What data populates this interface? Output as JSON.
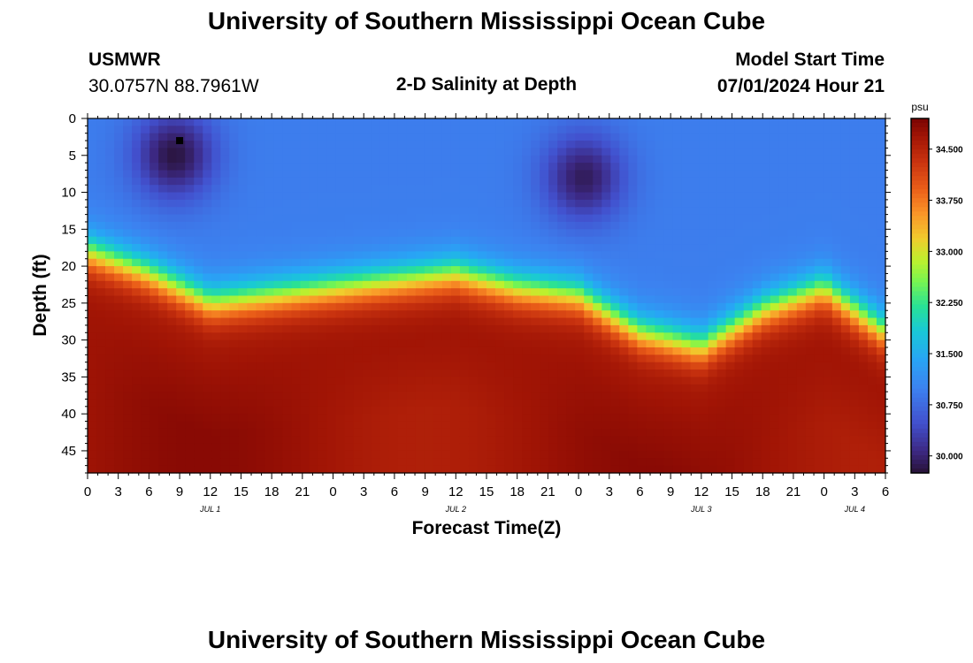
{
  "header": {
    "title": "University of Southern Mississippi Ocean Cube",
    "station": "USMWR",
    "coords": "30.0757N  88.7961W",
    "plot_title": "2-D Salinity at Depth",
    "model_start_label": "Model Start Time",
    "model_start_value": "07/01/2024 Hour 21"
  },
  "footer": {
    "title": "University of Southern Mississippi Ocean Cube"
  },
  "chart_data": {
    "type": "heatmap",
    "title": "2-D Salinity at Depth",
    "xlabel": "Forecast Time(Z)",
    "ylabel": "Depth (ft)",
    "x_range_hours": [
      0,
      78
    ],
    "ylim": [
      0,
      48
    ],
    "y_ticks": [
      0,
      5,
      10,
      15,
      20,
      25,
      30,
      35,
      40,
      45
    ],
    "x_tick_labels": [
      "0",
      "3",
      "6",
      "9",
      "12",
      "15",
      "18",
      "21",
      "0",
      "3",
      "6",
      "9",
      "12",
      "15",
      "18",
      "21",
      "0",
      "3",
      "6",
      "9",
      "12",
      "15",
      "18",
      "21",
      "0",
      "3",
      "6"
    ],
    "day_labels": [
      {
        "label": "JUL 1",
        "hour": 12
      },
      {
        "label": "JUL 2",
        "hour": 36
      },
      {
        "label": "JUL 3",
        "hour": 60
      },
      {
        "label": "JUL 4",
        "hour": 75
      }
    ],
    "colorbar": {
      "unit": "psu",
      "range": [
        29.75,
        34.95
      ],
      "ticks": [
        30.0,
        30.75,
        31.5,
        32.25,
        33.0,
        33.75,
        34.5
      ],
      "tick_labels": [
        "30.000",
        "30.750",
        "31.500",
        "32.250",
        "33.000",
        "33.750",
        "34.500"
      ]
    },
    "marker": {
      "hour": 9,
      "depth_ft": 3
    },
    "fields": {
      "halocline_depth_ft": {
        "hours": [
          0,
          6,
          12,
          18,
          24,
          30,
          36,
          42,
          48,
          54,
          60,
          66,
          72,
          78
        ],
        "values": [
          18,
          21,
          25,
          24,
          23,
          22,
          21,
          23,
          24,
          29,
          31,
          26,
          23,
          29
        ]
      },
      "fresh_surface_cores": [
        {
          "hour": 8.5,
          "depth_ft": 5,
          "salinity": 29.8
        },
        {
          "hour": 48.5,
          "depth_ft": 8,
          "salinity": 29.9
        }
      ],
      "surface_salinity_psu": 30.95,
      "bottom_salinity_psu": 34.7
    }
  }
}
